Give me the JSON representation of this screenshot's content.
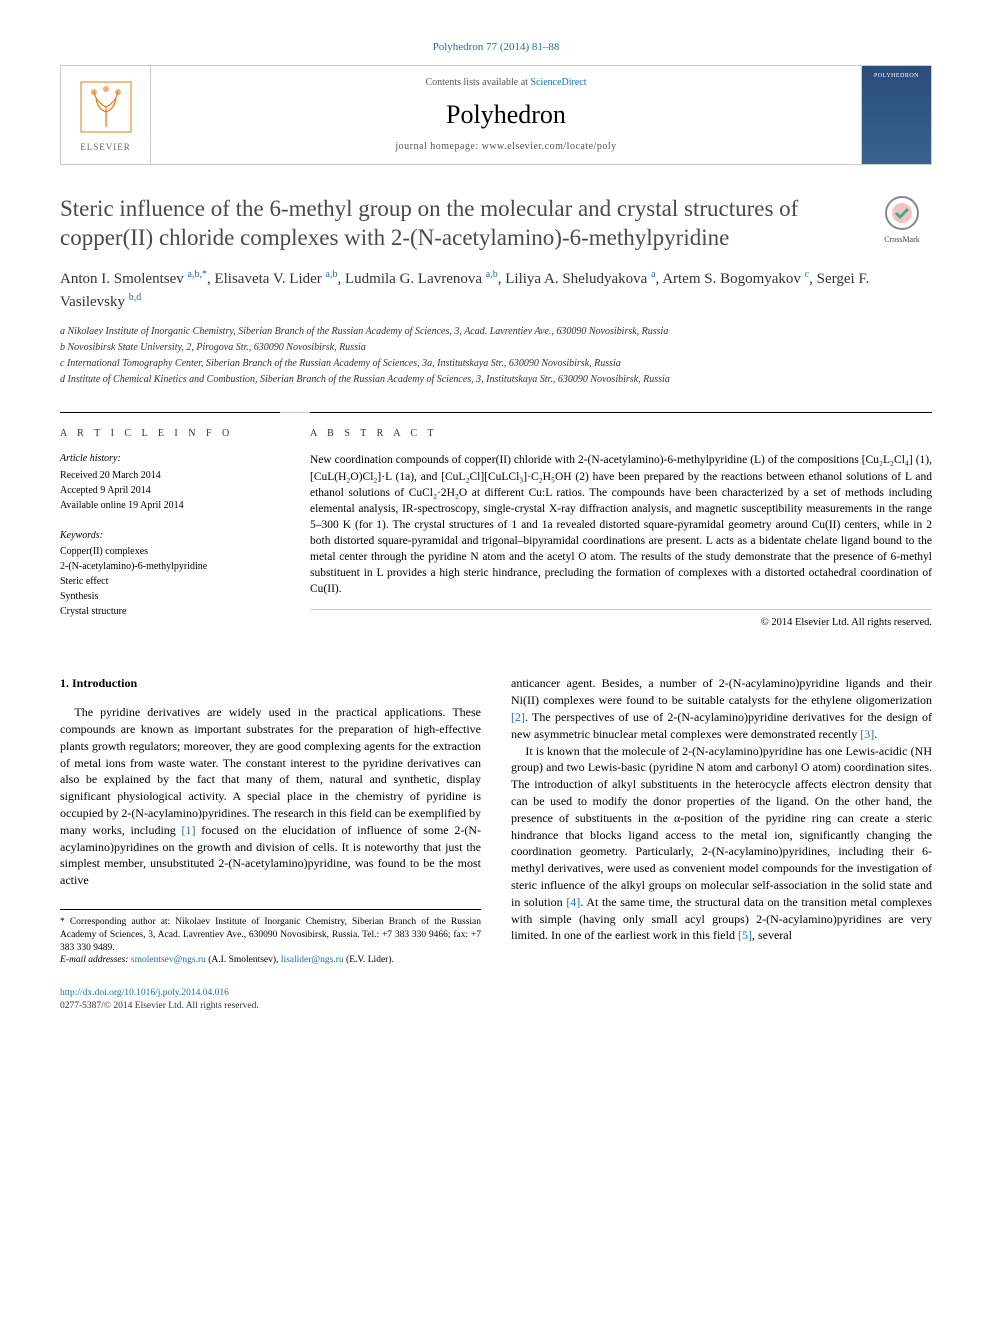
{
  "citation": "Polyhedron 77 (2014) 81–88",
  "header": {
    "contents_prefix": "Contents lists available at ",
    "contents_link": "ScienceDirect",
    "journal": "Polyhedron",
    "homepage_prefix": "journal homepage: ",
    "homepage": "www.elsevier.com/locate/poly",
    "publisher": "ELSEVIER"
  },
  "crossmark_label": "CrossMark",
  "title": "Steric influence of the 6-methyl group on the molecular and crystal structures of copper(II) chloride complexes with 2-(N-acetylamino)-6-methylpyridine",
  "authors_html": "Anton I. Smolentsev <sup>a,b,*</sup>, Elisaveta V. Lider <sup>a,b</sup>, Ludmila G. Lavrenova <sup>a,b</sup>, Liliya A. Sheludyakova <sup>a</sup>, Artem S. Bogomyakov <sup>c</sup>, Sergei F. Vasilevsky <sup>b,d</sup>",
  "affiliations": {
    "a": "a Nikolaev Institute of Inorganic Chemistry, Siberian Branch of the Russian Academy of Sciences, 3, Acad. Lavrentiev Ave., 630090 Novosibirsk, Russia",
    "b": "b Novosibirsk State University, 2, Pirogova Str., 630090 Novosibirsk, Russia",
    "c": "c International Tomography Center, Siberian Branch of the Russian Academy of Sciences, 3a, Institutskaya Str., 630090 Novosibirsk, Russia",
    "d": "d Institute of Chemical Kinetics and Combustion, Siberian Branch of the Russian Academy of Sciences, 3, Institutskaya Str., 630090 Novosibirsk, Russia"
  },
  "info": {
    "heading": "A R T I C L E   I N F O",
    "history_label": "Article history:",
    "received": "Received 20 March 2014",
    "accepted": "Accepted 9 April 2014",
    "online": "Available online 19 April 2014",
    "keywords_label": "Keywords:",
    "kw1": "Copper(II) complexes",
    "kw2": "2-(N-acetylamino)-6-methylpyridine",
    "kw3": "Steric effect",
    "kw4": "Synthesis",
    "kw5": "Crystal structure"
  },
  "abstract": {
    "heading": "A B S T R A C T",
    "text": "New coordination compounds of copper(II) chloride with 2-(N-acetylamino)-6-methylpyridine (L) of the compositions [Cu₂L₂Cl₄] (1), [CuL(H₂O)Cl₂]·L (1a), and [CuL₂Cl][CuLCl₃]·C₂H₅OH (2) have been prepared by the reactions between ethanol solutions of L and ethanol solutions of CuCl₂·2H₂O at different Cu:L ratios. The compounds have been characterized by a set of methods including elemental analysis, IR-spectroscopy, single-crystal X-ray diffraction analysis, and magnetic susceptibility measurements in the range 5–300 K (for 1). The crystal structures of 1 and 1a revealed distorted square-pyramidal geometry around Cu(II) centers, while in 2 both distorted square-pyramidal and trigonal–bipyramidal coordinations are present. L acts as a bidentate chelate ligand bound to the metal center through the pyridine N atom and the acetyl O atom. The results of the study demonstrate that the presence of 6-methyl substituent in L provides a high steric hindrance, precluding the formation of complexes with a distorted octahedral coordination of Cu(II).",
    "copyright": "© 2014 Elsevier Ltd. All rights reserved."
  },
  "body": {
    "section1_heading": "1. Introduction",
    "p1": "The pyridine derivatives are widely used in the practical applications. These compounds are known as important substrates for the preparation of high-effective plants growth regulators; moreover, they are good complexing agents for the extraction of metal ions from waste water. The constant interest to the pyridine derivatives can also be explained by the fact that many of them, natural and synthetic, display significant physiological activity. A special place in the chemistry of pyridine is occupied by 2-(N-acylamino)pyridines. The research in this field can be exemplified by many works, including [1] focused on the elucidation of influence of some 2-(N-acylamino)pyridines on the growth and division of cells. It is noteworthy that just the simplest member, unsubstituted 2-(N-acetylamino)pyridine, was found to be the most active",
    "p2": "anticancer agent. Besides, a number of 2-(N-acylamino)pyridine ligands and their Ni(II) complexes were found to be suitable catalysts for the ethylene oligomerization [2]. The perspectives of use of 2-(N-acylamino)pyridine derivatives for the design of new asymmetric binuclear metal complexes were demonstrated recently [3].",
    "p3": "It is known that the molecule of 2-(N-acylamino)pyridine has one Lewis-acidic (NH group) and two Lewis-basic (pyridine N atom and carbonyl O atom) coordination sites. The introduction of alkyl substituents in the heterocycle affects electron density that can be used to modify the donor properties of the ligand. On the other hand, the presence of substituents in the α-position of the pyridine ring can create a steric hindrance that blocks ligand access to the metal ion, significantly changing the coordination geometry. Particularly, 2-(N-acylamino)pyridines, including their 6-methyl derivatives, were used as convenient model compounds for the investigation of steric influence of the alkyl groups on molecular self-association in the solid state and in solution [4]. At the same time, the structural data on the transition metal complexes with simple (having only small acyl groups) 2-(N-acylamino)pyridines are very limited. In one of the earliest work in this field [5], several"
  },
  "footnote": {
    "corr": "* Corresponding author at: Nikolaev Institute of Inorganic Chemistry, Siberian Branch of the Russian Academy of Sciences, 3, Acad. Lavrentiev Ave., 630090 Novosibirsk, Russia. Tel.: +7 383 330 9466; fax: +7 383 330 9489.",
    "email_label": "E-mail addresses: ",
    "email1": "smolentsev@ngs.ru",
    "email1_who": " (A.I. Smolentsev), ",
    "email2": "lisalider@ngs.ru",
    "email2_who": " (E.V. Lider)."
  },
  "doi": "http://dx.doi.org/10.1016/j.poly.2014.04.016",
  "bottom_copyright": "0277-5387/© 2014 Elsevier Ltd. All rights reserved.",
  "colors": {
    "link": "#1a6db5",
    "border": "#cccccc",
    "text": "#000000",
    "title_color": "#4a4a4a"
  }
}
